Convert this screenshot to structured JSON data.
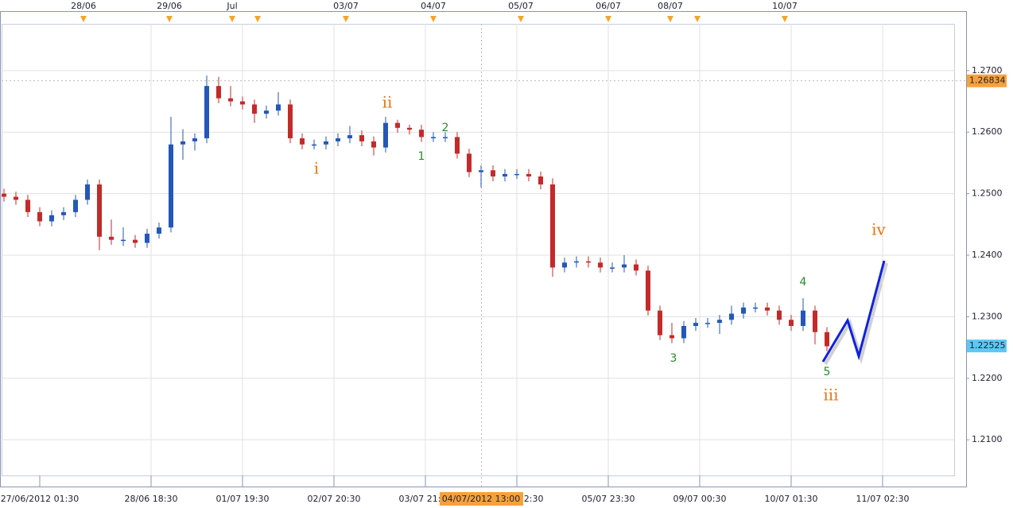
{
  "chart_data": {
    "type": "candlestick",
    "ylim": [
      1.2024,
      1.2776
    ],
    "yticks": [
      {
        "value": 1.21,
        "label": "1.2100"
      },
      {
        "value": 1.22,
        "label": "1.2200"
      },
      {
        "value": 1.23,
        "label": "1.2300"
      },
      {
        "value": 1.24,
        "label": "1.2400"
      },
      {
        "value": 1.25,
        "label": "1.2500"
      },
      {
        "value": 1.26,
        "label": "1.2600"
      },
      {
        "value": 1.27,
        "label": "1.2700"
      }
    ],
    "grid": true,
    "up_color": "#2457b8",
    "down_color": "#c42a2a",
    "top_labels": [
      "28/06",
      "29/06",
      "Jul",
      "03/07",
      "04/07",
      "05/07",
      "06/07",
      "08/07",
      "10/07"
    ],
    "bottom_labels": [
      "27/06/2012 01:30",
      "28/06 18:30",
      "01/07 19:30",
      "02/07 20:30",
      "03/07 21:30",
      "04/07 22:30",
      "05/07 23:30",
      "09/07 00:30",
      "10/07 01:30",
      "11/07 02:30"
    ],
    "cursor_label": "04/07/2012 13:00",
    "price_markers": [
      {
        "value": 1.26834,
        "color": "#f7a13b"
      },
      {
        "value": 1.22525,
        "color": "#5bc8f5"
      }
    ],
    "annotations": [
      "i",
      "ii",
      "1",
      "2",
      "3",
      "4",
      "5",
      "iii",
      "iv"
    ],
    "open": [
      1.25,
      1.2495,
      1.249,
      1.247,
      1.2455,
      1.2465,
      1.247,
      1.249,
      1.2515,
      1.243,
      1.2425,
      1.2425,
      1.242,
      1.2435,
      1.2445,
      1.258,
      1.2585,
      1.259,
      1.2675,
      1.2655,
      1.265,
      1.2645,
      1.263,
      1.2635,
      1.2645,
      1.259,
      1.258,
      1.258,
      1.2585,
      1.259,
      1.2595,
      1.2585,
      1.2575,
      1.2615,
      1.2607,
      1.2604,
      1.2592,
      1.2592,
      1.2592,
      1.2565,
      1.2535,
      1.2538,
      1.2528,
      1.2532,
      1.2532,
      1.2528,
      1.2515,
      1.238,
      1.2388,
      1.239,
      1.2388,
      1.238,
      1.238,
      1.2385,
      1.2375,
      1.231,
      1.227,
      1.2265,
      1.2285,
      1.229,
      1.229,
      1.2295,
      1.2305,
      1.2315,
      1.2315,
      1.231,
      1.2295,
      1.2285,
      1.231,
      1.2275
    ],
    "high": [
      1.2508,
      1.2503,
      1.2498,
      1.2478,
      1.2473,
      1.2478,
      1.2498,
      1.2523,
      1.2523,
      1.2458,
      1.2445,
      1.2433,
      1.2443,
      1.2453,
      1.2625,
      1.2605,
      1.2598,
      1.2692,
      1.269,
      1.2675,
      1.2658,
      1.2653,
      1.2643,
      1.2665,
      1.2653,
      1.2598,
      1.2588,
      1.2593,
      1.2598,
      1.261,
      1.2603,
      1.2593,
      1.2625,
      1.262,
      1.2612,
      1.2612,
      1.26,
      1.26,
      1.26,
      1.2573,
      1.2546,
      1.2546,
      1.254,
      1.254,
      1.254,
      1.2536,
      1.2525,
      1.2396,
      1.2398,
      1.2398,
      1.2396,
      1.2388,
      1.24,
      1.2393,
      1.2383,
      1.2318,
      1.229,
      1.2293,
      1.2298,
      1.2298,
      1.2303,
      1.2318,
      1.2323,
      1.2323,
      1.2323,
      1.2318,
      1.2303,
      1.233,
      1.2318,
      1.2283
    ],
    "low": [
      1.2487,
      1.2482,
      1.2462,
      1.2447,
      1.2447,
      1.2457,
      1.2462,
      1.2482,
      1.2408,
      1.2417,
      1.2415,
      1.2412,
      1.2412,
      1.2427,
      1.2437,
      1.2555,
      1.257,
      1.2582,
      1.2647,
      1.2642,
      1.2637,
      1.2615,
      1.2622,
      1.2627,
      1.2582,
      1.2572,
      1.2572,
      1.2572,
      1.2577,
      1.2582,
      1.2577,
      1.2562,
      1.2567,
      1.2599,
      1.2596,
      1.2584,
      1.2584,
      1.2584,
      1.2557,
      1.2527,
      1.251,
      1.252,
      1.252,
      1.2524,
      1.252,
      1.2507,
      1.2365,
      1.2372,
      1.238,
      1.238,
      1.2372,
      1.2372,
      1.2372,
      1.2367,
      1.2302,
      1.2262,
      1.2257,
      1.2257,
      1.2277,
      1.2282,
      1.2272,
      1.2287,
      1.2297,
      1.2307,
      1.2302,
      1.2287,
      1.2277,
      1.2277,
      1.2255,
      1.2244
    ],
    "close": [
      1.2495,
      1.249,
      1.247,
      1.2455,
      1.2465,
      1.247,
      1.249,
      1.2515,
      1.243,
      1.2425,
      1.2425,
      1.242,
      1.2435,
      1.2445,
      1.258,
      1.2585,
      1.259,
      1.2675,
      1.2655,
      1.265,
      1.2645,
      1.263,
      1.2635,
      1.2645,
      1.259,
      1.258,
      1.258,
      1.2585,
      1.259,
      1.2595,
      1.2585,
      1.2575,
      1.2615,
      1.2607,
      1.2604,
      1.2592,
      1.2592,
      1.2592,
      1.2565,
      1.2535,
      1.2538,
      1.2528,
      1.2532,
      1.2532,
      1.2528,
      1.2515,
      1.238,
      1.2388,
      1.239,
      1.2388,
      1.238,
      1.238,
      1.2385,
      1.2375,
      1.231,
      1.227,
      1.2265,
      1.2285,
      1.229,
      1.229,
      1.2295,
      1.2305,
      1.2315,
      1.2315,
      1.231,
      1.2295,
      1.2285,
      1.231,
      1.2275,
      1.2252
    ]
  }
}
